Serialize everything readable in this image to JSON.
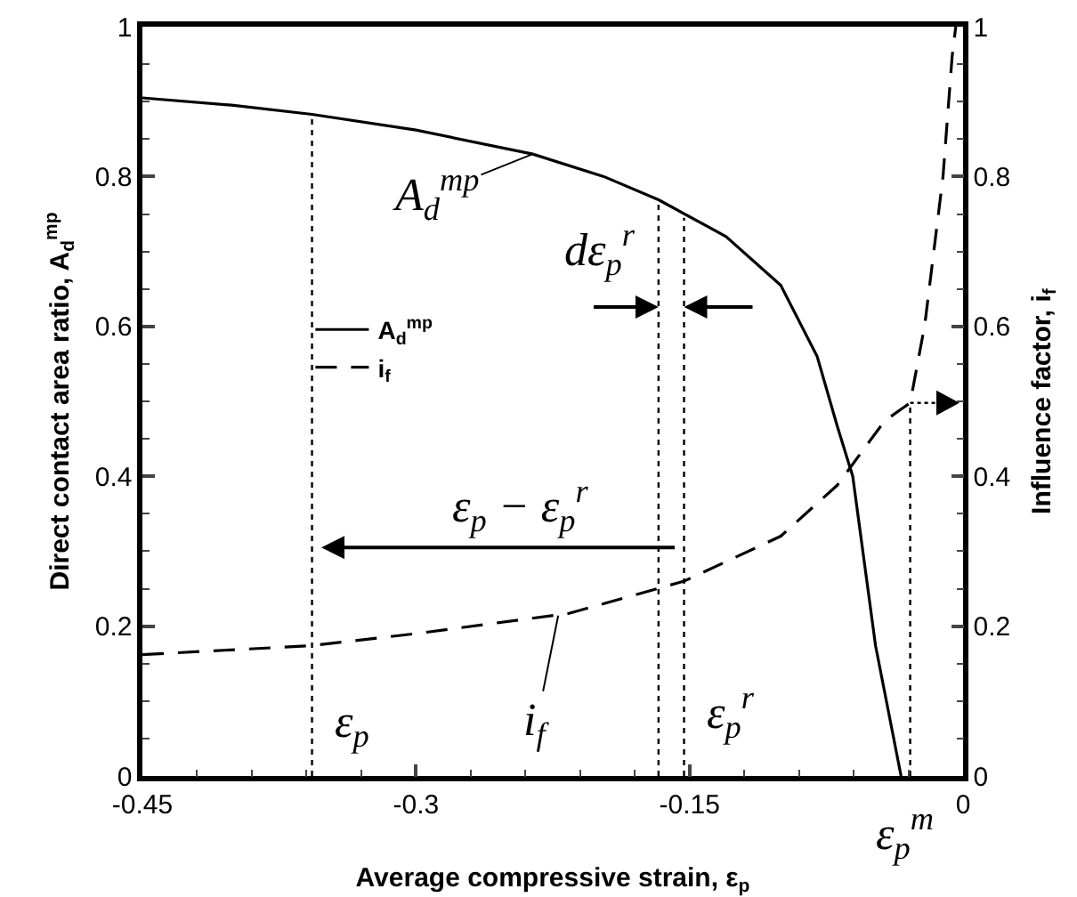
{
  "chart_data": {
    "type": "line",
    "xlabel": "Average compressive strain, ε$_{p}$",
    "ylabel": "Direct contact area ratio, A$_{d}$$^{mp}$",
    "y2label": "Influence factor, i$_{f}$",
    "xlim": [
      -0.45,
      0
    ],
    "ylim": [
      0,
      1
    ],
    "y2lim": [
      0,
      1
    ],
    "xticks": [
      -0.45,
      {
        "value": -0.42,
        "label": null
      },
      {
        "value": -0.39,
        "label": null
      },
      {
        "value": -0.36,
        "label": null
      },
      {
        "value": -0.33,
        "label": null
      },
      -0.3,
      {
        "value": -0.27,
        "label": null
      },
      {
        "value": -0.24,
        "label": null
      },
      {
        "value": -0.21,
        "label": null
      },
      {
        "value": -0.18,
        "label": null
      },
      -0.15,
      {
        "value": -0.12,
        "label": null
      },
      {
        "value": -0.09,
        "label": null
      },
      {
        "value": -0.06,
        "label": null
      },
      {
        "value": -0.03,
        "label": null
      },
      0
    ],
    "yticks": [
      0,
      {
        "value": 0.05,
        "label": null
      },
      {
        "value": 0.1,
        "label": null
      },
      {
        "value": 0.15,
        "label": null
      },
      0.2,
      {
        "value": 0.25,
        "label": null
      },
      {
        "value": 0.3,
        "label": null
      },
      {
        "value": 0.35,
        "label": null
      },
      0.4,
      {
        "value": 0.45,
        "label": null
      },
      {
        "value": 0.5,
        "label": null
      },
      {
        "value": 0.55,
        "label": null
      },
      0.6,
      {
        "value": 0.65,
        "label": null
      },
      {
        "value": 0.7,
        "label": null
      },
      {
        "value": 0.75,
        "label": null
      },
      0.8,
      {
        "value": 0.85,
        "label": null
      },
      {
        "value": 0.9,
        "label": null
      },
      {
        "value": 0.95,
        "label": null
      },
      1
    ],
    "y2ticks": [
      0,
      {
        "value": 0.05,
        "label": null
      },
      {
        "value": 0.1,
        "label": null
      },
      {
        "value": 0.15,
        "label": null
      },
      0.2,
      {
        "value": 0.25,
        "label": null
      },
      {
        "value": 0.3,
        "label": null
      },
      {
        "value": 0.35,
        "label": null
      },
      0.4,
      {
        "value": 0.45,
        "label": null
      },
      {
        "value": 0.5,
        "label": null
      },
      {
        "value": 0.55,
        "label": null
      },
      0.6,
      {
        "value": 0.65,
        "label": null
      },
      {
        "value": 0.7,
        "label": null
      },
      {
        "value": 0.75,
        "label": null
      },
      0.8,
      {
        "value": 0.85,
        "label": null
      },
      {
        "value": 0.9,
        "label": null
      },
      {
        "value": 0.95,
        "label": null
      },
      1
    ],
    "grid": false,
    "legend": "left",
    "marker": "none",
    "series": [
      {
        "name": "A$_{d}$$^{mp}$",
        "color": "#000000",
        "line_style": "solid",
        "x": [
          -0.45,
          -0.4,
          -0.357,
          -0.3,
          -0.236,
          -0.197,
          -0.167,
          -0.13,
          -0.1,
          -0.08,
          -0.069,
          -0.0605,
          -0.048,
          -0.034
        ],
        "values": [
          0.905,
          0.895,
          0.883,
          0.862,
          0.83,
          0.8,
          0.769,
          0.72,
          0.655,
          0.56,
          0.467,
          0.4,
          0.174,
          0
        ]
      },
      {
        "name": "i$_{f}$",
        "color": "#000000",
        "line_style": "dashed",
        "axis": "y2",
        "x": [
          -0.45,
          -0.357,
          -0.3,
          -0.216,
          -0.153,
          -0.1,
          -0.069,
          -0.043,
          -0.029,
          -0.021,
          -0.011,
          -0.006,
          -0.004
        ],
        "values": [
          0.162,
          0.174,
          0.19,
          0.217,
          0.26,
          0.32,
          0.388,
          0.474,
          0.498,
          0.602,
          0.8,
          0.96,
          1
        ]
      },
      {
        "color": "#000000",
        "line_style": "dotted",
        "x": [
          -0.357,
          -0.357
        ],
        "values": [
          0,
          0.883
        ]
      },
      {
        "color": "#000000",
        "line_style": "dotted",
        "x": [
          -0.167,
          -0.167
        ],
        "values": [
          0,
          0.769
        ]
      },
      {
        "color": "#000000",
        "line_style": "dotted",
        "x": [
          -0.153,
          -0.153
        ],
        "values": [
          0,
          0.745
        ]
      },
      {
        "color": "#000000",
        "line_style": "dotted",
        "axis": "y2",
        "x": [
          -0.029,
          -0.029
        ],
        "values": [
          0,
          0.498
        ]
      }
    ],
    "annotations": [
      {
        "text": "A$_{d}$$^{mp}$",
        "x": -0.236,
        "y": 0.83
      },
      {
        "text": "i$_{f}$",
        "x": -0.222,
        "y": 0.214
      },
      "dε$_{p}$$^{r}$",
      "ε$_{p}$ − ε$_{p}$$^{r}$",
      "ε$_{p}$",
      "ε$_{p}$$^{r}$",
      "ε$_{p}$$^{m}$"
    ]
  }
}
